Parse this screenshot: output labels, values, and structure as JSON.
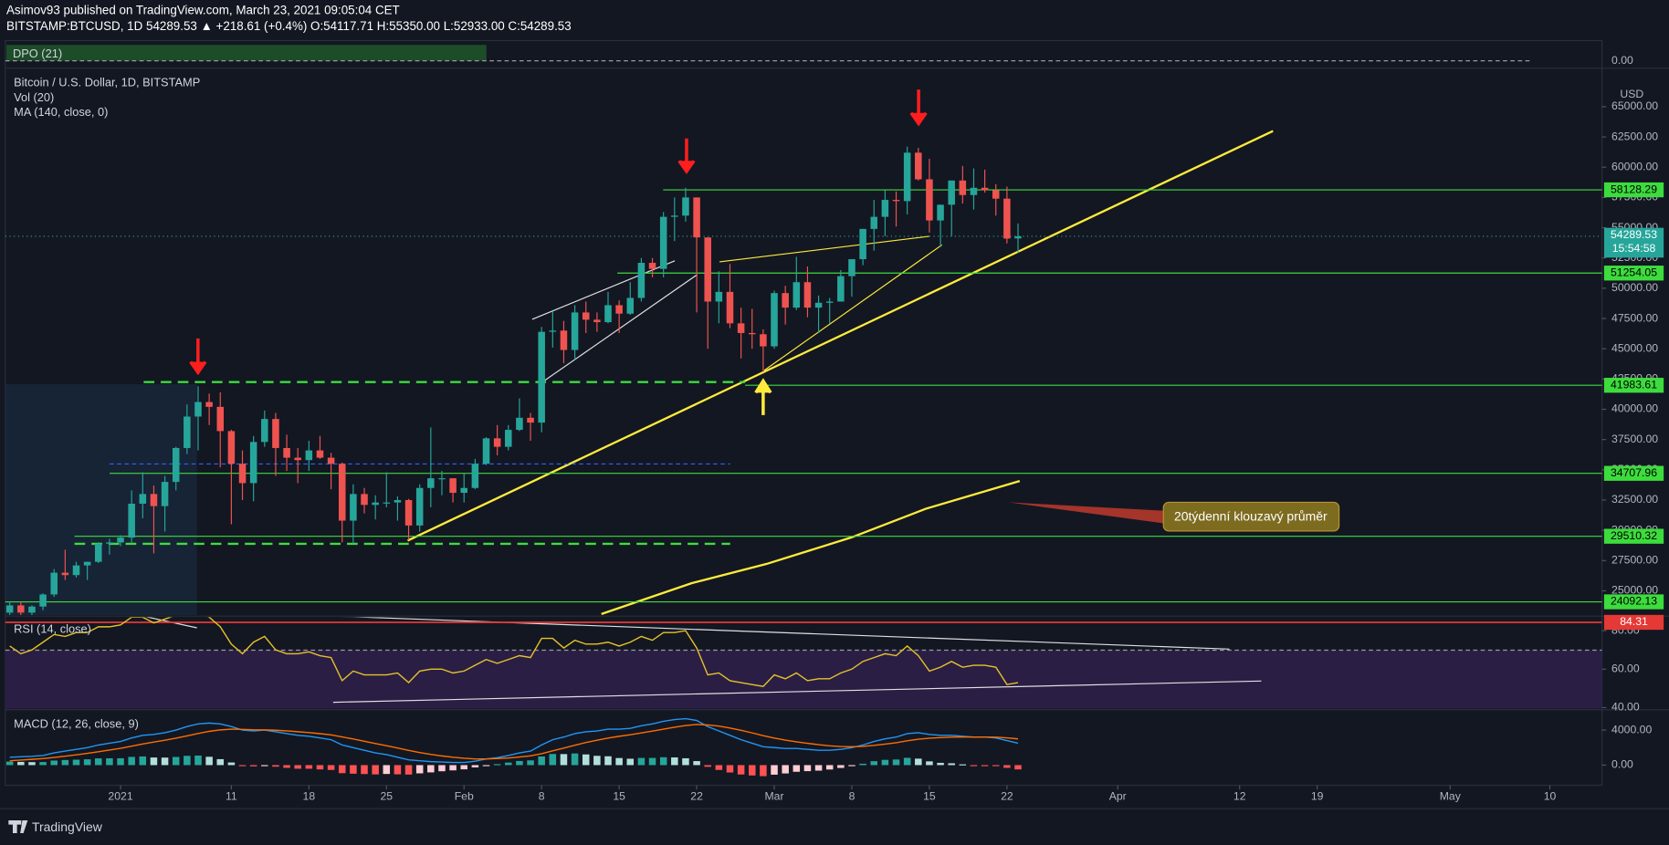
{
  "header": {
    "published": "Asimov93 published on TradingView.com, March 23, 2021 09:05:04 CET",
    "symbol": "BITSTAMP:BTCUSD, 1D  54289.53 ▲ +218.61 (+0.4%) O:54117.71 H:55350.00 L:52933.00 C:54289.53",
    "legend": [
      "Bitcoin / U.S. Dollar, 1D, BITSTAMP",
      "Vol (20)",
      "MA (140, close, 0)"
    ],
    "dpo": "DPO (21)",
    "dpo_tick": "0.00",
    "currency": "USD",
    "countdown": "15:54:58",
    "brand": "TradingView"
  },
  "chart_data": {
    "type": "candlestick",
    "up_color": "#26a69a",
    "down_color": "#ef5350",
    "level_color": "#3ddc3d",
    "xlim": [
      -0.4,
      143.7
    ],
    "xticks": [
      {
        "value": 10,
        "label": "2021"
      },
      {
        "value": 20,
        "label": "11"
      },
      {
        "value": 27,
        "label": "18"
      },
      {
        "value": 34,
        "label": "25"
      },
      {
        "value": 41,
        "label": "Feb"
      },
      {
        "value": 48,
        "label": "8"
      },
      {
        "value": 55,
        "label": "15"
      },
      {
        "value": 62,
        "label": "22"
      },
      {
        "value": 69,
        "label": "Mar"
      },
      {
        "value": 76,
        "label": "8"
      },
      {
        "value": 83,
        "label": "15"
      },
      {
        "value": 90,
        "label": "22"
      },
      {
        "value": 100,
        "label": "Apr"
      },
      {
        "value": 111,
        "label": "12"
      },
      {
        "value": 118,
        "label": "19"
      },
      {
        "value": 130,
        "label": "May"
      },
      {
        "value": 139,
        "label": "10"
      }
    ],
    "ylim": [
      23000,
      68000
    ],
    "yticks": [
      {
        "value": 25000,
        "label": "25000.00"
      },
      {
        "value": 27500,
        "label": "27500.00"
      },
      {
        "value": 30000,
        "label": "30000.00"
      },
      {
        "value": 32500,
        "label": "32500.00"
      },
      {
        "value": 35000,
        "label": "35000.00"
      },
      {
        "value": 37500,
        "label": "37500.00"
      },
      {
        "value": 40000,
        "label": "40000.00"
      },
      {
        "value": 42500,
        "label": "42500.00"
      },
      {
        "value": 45000,
        "label": "45000.00"
      },
      {
        "value": 47500,
        "label": "47500.00"
      },
      {
        "value": 50000,
        "label": "50000.00"
      },
      {
        "value": 52500,
        "label": "52500.00"
      },
      {
        "value": 55000,
        "label": "55000.00"
      },
      {
        "value": 57500,
        "label": "57500.00"
      },
      {
        "value": 60000,
        "label": "60000.00"
      },
      {
        "value": 62500,
        "label": "62500.00"
      },
      {
        "value": 65000,
        "label": "65000.00"
      }
    ],
    "levels": [
      58128.29,
      51254.05,
      41983.61,
      34707.96,
      29510.32,
      24092.13
    ],
    "annotation": "20týdenní klouzavý průměr",
    "candles": [
      [
        23200,
        24100,
        22600,
        23800
      ],
      [
        23800,
        24100,
        22800,
        23200
      ],
      [
        23200,
        23800,
        22700,
        23700
      ],
      [
        23700,
        24800,
        23400,
        24700
      ],
      [
        24700,
        26800,
        24500,
        26500
      ],
      [
        26500,
        28400,
        25900,
        26300
      ],
      [
        26300,
        27400,
        26100,
        27100
      ],
      [
        27100,
        27400,
        25900,
        27400
      ],
      [
        27400,
        29000,
        27300,
        28900
      ],
      [
        28900,
        29300,
        28000,
        29000
      ],
      [
        29000,
        29600,
        28700,
        29400
      ],
      [
        29400,
        33300,
        29000,
        32200
      ],
      [
        32200,
        34800,
        31000,
        33000
      ],
      [
        33000,
        33700,
        28100,
        32000
      ],
      [
        32000,
        34500,
        29900,
        34000
      ],
      [
        34000,
        36900,
        33300,
        36800
      ],
      [
        36800,
        40400,
        36300,
        39400
      ],
      [
        39400,
        41900,
        36600,
        40600
      ],
      [
        40600,
        41300,
        38700,
        40200
      ],
      [
        40200,
        41400,
        35200,
        38200
      ],
      [
        38200,
        38300,
        30500,
        35500
      ],
      [
        35500,
        36600,
        32500,
        33900
      ],
      [
        33900,
        37800,
        32400,
        37300
      ],
      [
        37300,
        39900,
        36900,
        39200
      ],
      [
        39200,
        39700,
        34500,
        36800
      ],
      [
        36800,
        37900,
        34900,
        36000
      ],
      [
        36000,
        36800,
        33900,
        35800
      ],
      [
        35800,
        37400,
        34900,
        36600
      ],
      [
        36600,
        37800,
        35900,
        36000
      ],
      [
        36000,
        36400,
        33400,
        35500
      ],
      [
        35500,
        35600,
        29000,
        30800
      ],
      [
        30800,
        33800,
        28900,
        33000
      ],
      [
        33000,
        33500,
        31400,
        32100
      ],
      [
        32100,
        32900,
        30900,
        32300
      ],
      [
        32300,
        34800,
        31900,
        32300
      ],
      [
        32300,
        32800,
        30800,
        32500
      ],
      [
        32500,
        32600,
        29200,
        30400
      ],
      [
        30400,
        33800,
        29900,
        33500
      ],
      [
        33500,
        38500,
        31900,
        34300
      ],
      [
        34300,
        34900,
        32900,
        34300
      ],
      [
        34300,
        34300,
        32300,
        33100
      ],
      [
        33100,
        34700,
        32300,
        33500
      ],
      [
        33500,
        35900,
        33400,
        35500
      ],
      [
        35500,
        37700,
        35400,
        37600
      ],
      [
        37600,
        38700,
        36200,
        36900
      ],
      [
        36900,
        38700,
        36600,
        38300
      ],
      [
        38300,
        40900,
        38200,
        39300
      ],
      [
        39300,
        39700,
        37400,
        38900
      ],
      [
        38900,
        46800,
        38100,
        46400
      ],
      [
        46400,
        48100,
        45100,
        46500
      ],
      [
        46500,
        47300,
        43800,
        44900
      ],
      [
        44900,
        48600,
        44100,
        48000
      ],
      [
        48000,
        48900,
        46300,
        47400
      ],
      [
        47400,
        48000,
        46400,
        47200
      ],
      [
        47200,
        49700,
        47100,
        48600
      ],
      [
        48600,
        49000,
        46300,
        47900
      ],
      [
        47900,
        50500,
        47800,
        49200
      ],
      [
        49200,
        52500,
        48900,
        52100
      ],
      [
        52100,
        52500,
        50900,
        51600
      ],
      [
        51600,
        56300,
        50900,
        55900
      ],
      [
        55900,
        57500,
        53900,
        56000
      ],
      [
        56000,
        58300,
        55500,
        57500
      ],
      [
        57500,
        57500,
        48000,
        54200
      ],
      [
        54200,
        54200,
        45000,
        48900
      ],
      [
        48900,
        51400,
        47100,
        49700
      ],
      [
        49700,
        52000,
        46700,
        47100
      ],
      [
        47100,
        48400,
        44200,
        46300
      ],
      [
        46300,
        48300,
        45000,
        46200
      ],
      [
        46200,
        46600,
        43100,
        45200
      ],
      [
        45200,
        49800,
        45000,
        49600
      ],
      [
        49600,
        50200,
        47000,
        48400
      ],
      [
        48400,
        52600,
        48200,
        50500
      ],
      [
        50500,
        51800,
        47600,
        48400
      ],
      [
        48400,
        49400,
        46300,
        48800
      ],
      [
        48800,
        49200,
        47100,
        48900
      ],
      [
        48900,
        51500,
        48900,
        51000
      ],
      [
        51000,
        52400,
        49300,
        52400
      ],
      [
        52400,
        54900,
        51900,
        54900
      ],
      [
        54900,
        57300,
        53100,
        55900
      ],
      [
        55900,
        58100,
        54300,
        57300
      ],
      [
        57300,
        58000,
        55100,
        57200
      ],
      [
        57200,
        61700,
        56100,
        61200
      ],
      [
        61200,
        61600,
        58900,
        59000
      ],
      [
        59000,
        60700,
        54600,
        55600
      ],
      [
        55600,
        56900,
        53400,
        56900
      ],
      [
        56900,
        58900,
        54300,
        58900
      ],
      [
        58900,
        60100,
        57000,
        57700
      ],
      [
        57700,
        59900,
        56500,
        58300
      ],
      [
        58300,
        59800,
        57900,
        58100
      ],
      [
        58100,
        58600,
        56000,
        57400
      ],
      [
        57400,
        58400,
        53700,
        54100
      ],
      [
        54117.71,
        55350,
        52933,
        54289.53
      ]
    ],
    "rsi": {
      "title": "RSI (14, close)",
      "color": "#e6c229",
      "ylim": [
        40,
        87
      ],
      "yticks": [
        {
          "value": 40,
          "label": "40.00"
        },
        {
          "value": 60,
          "label": "60.00"
        },
        {
          "value": 80,
          "label": "80.00"
        }
      ],
      "level": 84.31,
      "values": [
        72,
        68,
        70,
        74,
        78,
        77,
        79,
        79,
        82,
        82,
        83,
        87,
        87,
        84,
        86,
        88,
        89,
        89,
        87,
        82,
        73,
        68,
        74,
        77,
        70,
        68,
        68,
        69,
        67,
        66,
        54,
        59,
        57,
        57,
        57,
        58,
        53,
        59,
        60,
        60,
        58,
        59,
        62,
        65,
        63,
        65,
        67,
        66,
        76,
        76,
        71,
        75,
        73,
        73,
        74,
        72,
        74,
        77,
        75,
        79,
        79,
        80,
        71,
        57,
        58,
        54,
        53,
        52,
        51,
        57,
        55,
        58,
        54,
        55,
        55,
        58,
        60,
        64,
        66,
        68,
        67,
        72,
        67,
        59,
        61,
        64,
        61,
        62,
        62,
        61,
        52,
        53
      ]
    },
    "macd": {
      "title": "MACD (12, 26, close, 9)",
      "ylim": [
        -2300,
        6200
      ],
      "yticks": [
        {
          "value": 0,
          "label": "0.00"
        },
        {
          "value": 4000,
          "label": "4000.00"
        }
      ],
      "macd_color": "#2196f3",
      "signal_color": "#ff6d00",
      "macd": [
        900,
        950,
        1000,
        1100,
        1400,
        1600,
        1800,
        2000,
        2300,
        2500,
        2700,
        3100,
        3400,
        3500,
        3700,
        4000,
        4400,
        4700,
        4800,
        4700,
        4400,
        4000,
        3900,
        4000,
        3800,
        3600,
        3400,
        3300,
        3100,
        2900,
        2300,
        2000,
        1700,
        1400,
        1200,
        900,
        600,
        500,
        400,
        350,
        300,
        300,
        450,
        700,
        850,
        1100,
        1400,
        1600,
        2300,
        2900,
        3200,
        3600,
        3800,
        3900,
        4100,
        4100,
        4200,
        4500,
        4700,
        5000,
        5200,
        5300,
        5100,
        4400,
        3900,
        3400,
        2900,
        2500,
        2100,
        2000,
        1900,
        1900,
        1800,
        1700,
        1700,
        1800,
        2000,
        2300,
        2700,
        3000,
        3200,
        3600,
        3700,
        3500,
        3400,
        3400,
        3300,
        3200,
        3200,
        3100,
        2800,
        2500
      ],
      "signal": [
        500,
        580,
        660,
        750,
        880,
        1020,
        1180,
        1340,
        1530,
        1720,
        1920,
        2160,
        2410,
        2630,
        2840,
        3070,
        3340,
        3610,
        3850,
        4020,
        4100,
        4080,
        4040,
        4030,
        3980,
        3910,
        3810,
        3710,
        3590,
        3450,
        3220,
        2980,
        2720,
        2460,
        2210,
        1950,
        1680,
        1440,
        1230,
        1050,
        900,
        780,
        710,
        710,
        740,
        810,
        930,
        1060,
        1310,
        1630,
        1940,
        2270,
        2580,
        2840,
        3090,
        3290,
        3470,
        3680,
        3880,
        4100,
        4320,
        4520,
        4640,
        4590,
        4450,
        4240,
        3970,
        3680,
        3360,
        3090,
        2850,
        2660,
        2490,
        2330,
        2200,
        2120,
        2100,
        2140,
        2250,
        2400,
        2560,
        2770,
        2960,
        3070,
        3140,
        3190,
        3210,
        3210,
        3210,
        3190,
        3110,
        2990
      ],
      "histogram": [
        400,
        370,
        340,
        350,
        520,
        580,
        620,
        660,
        770,
        780,
        780,
        940,
        990,
        870,
        860,
        930,
        1060,
        1090,
        950,
        680,
        300,
        -80,
        -140,
        -30,
        -180,
        -310,
        -410,
        -410,
        -490,
        -550,
        -920,
        -980,
        -1020,
        -1060,
        -1010,
        -1050,
        -1080,
        -940,
        -830,
        -700,
        -600,
        -480,
        -260,
        -10,
        110,
        290,
        470,
        540,
        990,
        1270,
        1260,
        1330,
        1220,
        1060,
        1010,
        810,
        730,
        820,
        820,
        900,
        880,
        780,
        460,
        -190,
        -550,
        -840,
        -1070,
        -1180,
        -1260,
        -1090,
        -950,
        -760,
        -690,
        -630,
        -500,
        -320,
        -100,
        160,
        450,
        600,
        640,
        830,
        740,
        430,
        260,
        210,
        90,
        -10,
        -10,
        -90,
        -310,
        -490
      ]
    }
  }
}
